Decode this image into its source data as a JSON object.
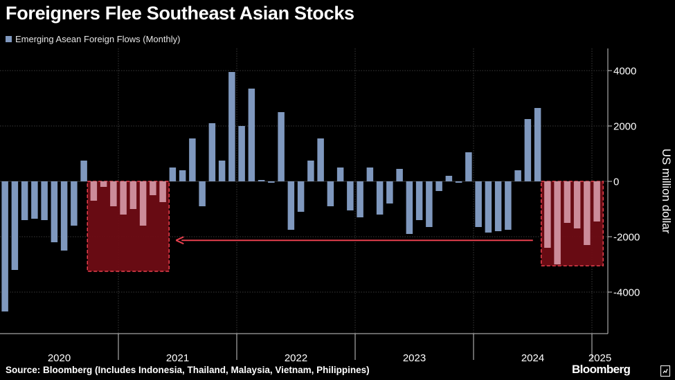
{
  "title": "Foreigners Flee Southeast Asian Stocks",
  "legend": {
    "label": "Emerging Asean Foreign Flows (Monthly)"
  },
  "source": "Source: Bloomberg (Includes Indonesia, Thailand, Malaysia, Vietnam, Philippines)",
  "brand": "Bloomberg",
  "colors": {
    "background": "#000000",
    "bar": "#7f98be",
    "bar_highlight": "#cc8c9a",
    "highlight_fill": "#6e0c14",
    "highlight_stroke": "#e8404e",
    "arrow": "#e8404e",
    "grid": "#3a3a3a",
    "text": "#ffffff"
  },
  "chart_data": {
    "type": "bar",
    "title": "Foreigners Flee Southeast Asian Stocks",
    "ylabel": "US million dollar",
    "xlabel": "",
    "ylim": [
      -5500,
      4800
    ],
    "y_ticks": [
      4000,
      2000,
      0,
      -2000,
      -4000
    ],
    "y_tick_labels": [
      "4000",
      "2000",
      "0",
      "-2000",
      "-4000"
    ],
    "year_labels": [
      "2020",
      "2021",
      "2022",
      "2023",
      "2024",
      "2025"
    ],
    "series": [
      {
        "name": "Emerging Asean Foreign Flows (Monthly)",
        "start": "2020-01",
        "values": [
          -4700,
          -3200,
          -1400,
          -1350,
          -1400,
          -2200,
          -2500,
          -1600,
          750,
          -700,
          -200,
          -900,
          -1200,
          -1000,
          -1600,
          -500,
          -750,
          500,
          400,
          1550,
          -900,
          2100,
          750,
          3950,
          2000,
          3350,
          50,
          -50,
          2500,
          -1750,
          -1100,
          750,
          1550,
          -900,
          500,
          -1050,
          -1300,
          500,
          -1200,
          -800,
          450,
          -1900,
          -1400,
          -1650,
          -350,
          200,
          -50,
          1050,
          -1650,
          -1850,
          -1800,
          -1750,
          400,
          2250,
          2650,
          -2400,
          -3000,
          -1500,
          -1700,
          -2300,
          -1450
        ]
      }
    ],
    "highlight_ranges": [
      {
        "start_index": 9,
        "end_index": 16,
        "box_min": -3250,
        "box_max": 0
      },
      {
        "start_index": 55,
        "end_index": 60,
        "box_min": -3050,
        "box_max": 0
      }
    ],
    "annotations": [
      {
        "type": "arrow",
        "from": "2025 outflows",
        "to": "2021 outflows",
        "y_value": -2130
      }
    ]
  }
}
